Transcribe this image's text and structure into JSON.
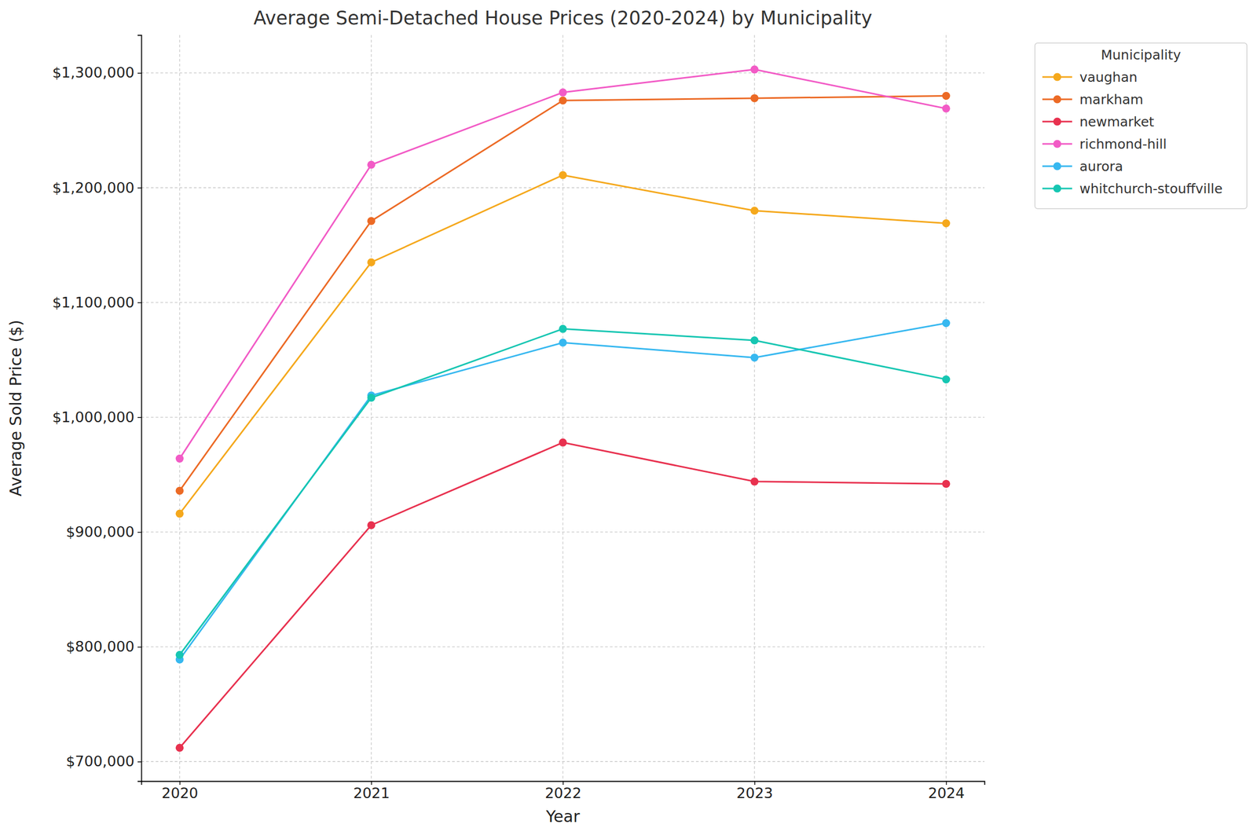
{
  "chart_data": {
    "type": "line",
    "title": "Average Semi-Detached House Prices (2020-2024) by Municipality",
    "x_label": "Year",
    "y_label": "Average Sold Price ($)",
    "legend_title": "Municipality",
    "x": [
      2020,
      2021,
      2022,
      2023,
      2024
    ],
    "series": [
      {
        "name": "vaughan",
        "color": "#f5a81c",
        "values": [
          916000,
          1135000,
          1211000,
          1180000,
          1169000
        ]
      },
      {
        "name": "markham",
        "color": "#ec6a25",
        "values": [
          936000,
          1171000,
          1276000,
          1278000,
          1280000
        ]
      },
      {
        "name": "newmarket",
        "color": "#e8314f",
        "values": [
          712000,
          906000,
          978000,
          944000,
          942000
        ]
      },
      {
        "name": "richmond-hill",
        "color": "#f25bc6",
        "values": [
          964000,
          1220000,
          1283000,
          1303000,
          1269000
        ]
      },
      {
        "name": "aurora",
        "color": "#37b8f0",
        "values": [
          789000,
          1019000,
          1065000,
          1052000,
          1082000
        ]
      },
      {
        "name": "whitchurch-stouffville",
        "color": "#16c6b2",
        "values": [
          793000,
          1017000,
          1077000,
          1067000,
          1033000
        ]
      }
    ],
    "xlim": [
      2019.8,
      2024.2
    ],
    "xticks": [
      2020,
      2021,
      2022,
      2023,
      2024
    ],
    "ylim": [
      683000,
      1333000
    ],
    "yticks": [
      {
        "value": 700000,
        "label": "$700,000"
      },
      {
        "value": 800000,
        "label": "$800,000"
      },
      {
        "value": 900000,
        "label": "$900,000"
      },
      {
        "value": 1000000,
        "label": "$1,000,000"
      },
      {
        "value": 1100000,
        "label": "$1,100,000"
      },
      {
        "value": 1200000,
        "label": "$1,200,000"
      },
      {
        "value": 1300000,
        "label": "$1,300,000"
      }
    ],
    "grid": true,
    "legend": "right",
    "marker": "circle",
    "line_style": "solid"
  }
}
